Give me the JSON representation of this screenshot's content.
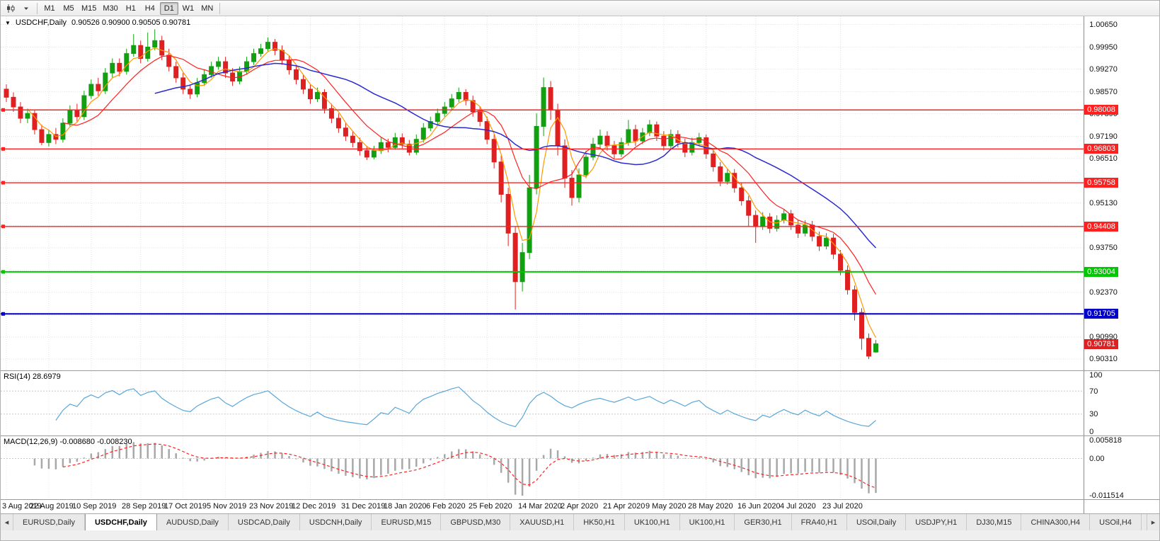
{
  "toolbar": {
    "timeframes": [
      "M1",
      "M5",
      "M15",
      "M30",
      "H1",
      "H4",
      "D1",
      "W1",
      "MN"
    ],
    "active_timeframe": "D1"
  },
  "chart": {
    "title": "USDCHF,Daily",
    "ohlc": "0.90526 0.90900 0.90505 0.90781",
    "current_price": "0.90781",
    "current_price_color": "#e02020"
  },
  "price_scale": {
    "labels": [
      "1.00650",
      "0.99950",
      "0.99270",
      "0.98570",
      "0.97890",
      "0.97190",
      "0.96510",
      "0.95810",
      "0.95130",
      "0.94430",
      "0.93750",
      "0.93050",
      "0.92370",
      "0.91670",
      "0.90990",
      "0.90310"
    ]
  },
  "rsi_panel": {
    "label": "RSI(14) 28.6979",
    "value": 28.6979,
    "axis_labels": [
      "100",
      "70",
      "30",
      "0"
    ]
  },
  "macd_panel": {
    "label": "MACD(12,26,9) -0.008680 -0.008230",
    "macd_value": -0.00868,
    "signal_value": -0.00823,
    "axis_labels": [
      "0.005818",
      "0.00",
      "-0.011514"
    ]
  },
  "tabs": {
    "items": [
      "EURUSD,Daily",
      "USDCHF,Daily",
      "AUDUSD,Daily",
      "USDCAD,Daily",
      "USDCNH,Daily",
      "EURUSD,M15",
      "GBPUSD,M30",
      "XAUUSD,H1",
      "HK50,H1",
      "UK100,H1",
      "UK100,H1",
      "GER30,H1",
      "FRA40,H1",
      "USOil,Daily",
      "USDJPY,H1",
      "DJ30,M15",
      "CHINA300,H4",
      "USOil,H4"
    ],
    "active_index": 1,
    "scroll_left_icon": "◂",
    "scroll_right_icon": "▸"
  },
  "chart_data": {
    "type": "candlestick",
    "title": "USDCHF,Daily",
    "symbol": "USDCHF",
    "timeframe": "Daily",
    "aggregation_days_per_bar": 2,
    "ohlc_current": {
      "open": 0.90526,
      "high": 0.909,
      "low": 0.90505,
      "close": 0.90781
    },
    "up_color": "#10a010",
    "down_color": "#e02020",
    "y_axis_ticks": [
      1.0065,
      0.9995,
      0.9927,
      0.9857,
      0.9789,
      0.9719,
      0.9651,
      0.9581,
      0.9513,
      0.9443,
      0.9375,
      0.9305,
      0.9237,
      0.9167,
      0.9099,
      0.9031
    ],
    "ylim": [
      0.9031,
      1.0065
    ],
    "x_axis_labels": [
      "3 Aug 2019",
      "22 Aug 2019",
      "10 Sep 2019",
      "28 Sep 2019",
      "17 Oct 2019",
      "5 Nov 2019",
      "23 Nov 2019",
      "12 Dec 2019",
      "31 Dec 2019",
      "18 Jan 2020",
      "6 Feb 2020",
      "25 Feb 2020",
      "14 Mar 2020",
      "2 Apr 2020",
      "21 Apr 2020",
      "9 May 2020",
      "28 May 2020",
      "16 Jun 2020",
      "4 Jul 2020",
      "23 Jul 2020"
    ],
    "x_label_bar_index": [
      0,
      6,
      12,
      19,
      25,
      31,
      37,
      43,
      50,
      56,
      62,
      68,
      75,
      81,
      87,
      93,
      99,
      106,
      112,
      118
    ],
    "moving_averages": [
      {
        "name": "ma-fast",
        "period": 8,
        "color": "#ff9900",
        "width": 1.2
      },
      {
        "name": "ma-mid",
        "period": 18,
        "color": "#ff2020",
        "width": 1.2
      },
      {
        "name": "ma-slow",
        "period": 44,
        "color": "#2a2ad0",
        "width": 1.5
      }
    ],
    "horizontal_levels": [
      {
        "value": 0.98008,
        "label": "0.98008",
        "color": "#ff2020",
        "width": 1.4
      },
      {
        "value": 0.96803,
        "label": "0.96803",
        "color": "#ff2020",
        "width": 1.4
      },
      {
        "value": 0.95758,
        "label": "0.95758",
        "color": "#ff2020",
        "width": 1.4
      },
      {
        "value": 0.94408,
        "label": "0.94408",
        "color": "#ff2020",
        "width": 1.4
      },
      {
        "value": 0.93004,
        "label": "0.93004",
        "color": "#00c800",
        "width": 2
      },
      {
        "value": 0.91705,
        "label": "0.91705",
        "color": "#0000c8",
        "width": 2
      }
    ],
    "indicators": [
      {
        "type": "rsi",
        "period": 14,
        "color": "#58a6d8",
        "guides": [
          70,
          30
        ],
        "range": [
          0,
          100
        ],
        "axis_ticks": [
          100,
          70,
          30,
          0
        ],
        "current": 28.6979
      },
      {
        "type": "macd",
        "fast": 12,
        "slow": 26,
        "signal": 9,
        "histogram_color": "#a8a8a8",
        "signal_color": "#ff2020",
        "range": [
          -0.011514,
          0.005818
        ],
        "axis_ticks": [
          0.005818,
          0,
          -0.011514
        ],
        "current_macd": -0.00868,
        "current_signal": -0.00823
      }
    ],
    "candles": [
      [
        0.9865,
        0.988,
        0.9825,
        0.984
      ],
      [
        0.984,
        0.9855,
        0.9795,
        0.981
      ],
      [
        0.981,
        0.9825,
        0.976,
        0.9775
      ],
      [
        0.9775,
        0.9805,
        0.976,
        0.979
      ],
      [
        0.979,
        0.98,
        0.9725,
        0.974
      ],
      [
        0.974,
        0.9755,
        0.9692,
        0.97
      ],
      [
        0.97,
        0.974,
        0.9688,
        0.9725
      ],
      [
        0.9725,
        0.9745,
        0.9695,
        0.971
      ],
      [
        0.971,
        0.9775,
        0.97,
        0.976
      ],
      [
        0.976,
        0.9815,
        0.975,
        0.98
      ],
      [
        0.98,
        0.982,
        0.9765,
        0.978
      ],
      [
        0.978,
        0.986,
        0.977,
        0.9845
      ],
      [
        0.9845,
        0.9895,
        0.9835,
        0.988
      ],
      [
        0.988,
        0.99,
        0.9845,
        0.986
      ],
      [
        0.986,
        0.993,
        0.985,
        0.9915
      ],
      [
        0.9915,
        0.996,
        0.99,
        0.9945
      ],
      [
        0.9945,
        0.996,
        0.9905,
        0.992
      ],
      [
        0.992,
        0.999,
        0.991,
        0.9975
      ],
      [
        0.9975,
        1.0035,
        0.9965,
        1.0
      ],
      [
        1.0,
        1.0015,
        0.9945,
        0.996
      ],
      [
        0.996,
        1.004,
        0.995,
        0.9995
      ],
      [
        0.9995,
        1.005,
        0.9985,
        1.0015
      ],
      [
        1.0015,
        1.003,
        0.9955,
        0.997
      ],
      [
        0.997,
        0.999,
        0.992,
        0.9935
      ],
      [
        0.9935,
        0.995,
        0.9885,
        0.99
      ],
      [
        0.99,
        0.9915,
        0.985,
        0.9865
      ],
      [
        0.9865,
        0.988,
        0.9835,
        0.985
      ],
      [
        0.985,
        0.99,
        0.984,
        0.9885
      ],
      [
        0.9885,
        0.9925,
        0.9875,
        0.991
      ],
      [
        0.991,
        0.995,
        0.99,
        0.9935
      ],
      [
        0.9935,
        0.9965,
        0.9925,
        0.995
      ],
      [
        0.995,
        0.9965,
        0.99,
        0.9915
      ],
      [
        0.9915,
        0.993,
        0.9875,
        0.989
      ],
      [
        0.989,
        0.9935,
        0.988,
        0.992
      ],
      [
        0.992,
        0.9965,
        0.991,
        0.995
      ],
      [
        0.995,
        0.999,
        0.994,
        0.9975
      ],
      [
        0.9975,
        1.0005,
        0.9965,
        0.999
      ],
      [
        0.999,
        1.0025,
        0.998,
        1.001
      ],
      [
        1.001,
        1.002,
        0.997,
        0.9985
      ],
      [
        0.9985,
        1.0,
        0.994,
        0.9955
      ],
      [
        0.9955,
        0.997,
        0.991,
        0.9925
      ],
      [
        0.9925,
        0.994,
        0.988,
        0.9895
      ],
      [
        0.9895,
        0.991,
        0.985,
        0.9865
      ],
      [
        0.9865,
        0.988,
        0.982,
        0.9835
      ],
      [
        0.9835,
        0.987,
        0.9825,
        0.9855
      ],
      [
        0.9855,
        0.9865,
        0.979,
        0.9805
      ],
      [
        0.9805,
        0.982,
        0.976,
        0.9775
      ],
      [
        0.9775,
        0.979,
        0.973,
        0.9745
      ],
      [
        0.9745,
        0.976,
        0.9705,
        0.972
      ],
      [
        0.972,
        0.9735,
        0.9685,
        0.97
      ],
      [
        0.97,
        0.9715,
        0.966,
        0.9675
      ],
      [
        0.9675,
        0.969,
        0.9646,
        0.9655
      ],
      [
        0.9655,
        0.969,
        0.9648,
        0.9675
      ],
      [
        0.9675,
        0.9715,
        0.9665,
        0.97
      ],
      [
        0.97,
        0.9712,
        0.967,
        0.9685
      ],
      [
        0.9685,
        0.973,
        0.9678,
        0.9715
      ],
      [
        0.9715,
        0.9728,
        0.9682,
        0.9695
      ],
      [
        0.9695,
        0.9708,
        0.966,
        0.967
      ],
      [
        0.967,
        0.9725,
        0.9662,
        0.971
      ],
      [
        0.971,
        0.976,
        0.97,
        0.9745
      ],
      [
        0.9745,
        0.978,
        0.9735,
        0.9765
      ],
      [
        0.9765,
        0.9805,
        0.9755,
        0.979
      ],
      [
        0.979,
        0.9825,
        0.978,
        0.981
      ],
      [
        0.981,
        0.985,
        0.98,
        0.9835
      ],
      [
        0.9835,
        0.987,
        0.9825,
        0.9855
      ],
      [
        0.9855,
        0.9865,
        0.9815,
        0.983
      ],
      [
        0.983,
        0.9845,
        0.978,
        0.9795
      ],
      [
        0.9795,
        0.981,
        0.975,
        0.9765
      ],
      [
        0.9765,
        0.978,
        0.9695,
        0.971
      ],
      [
        0.971,
        0.9725,
        0.962,
        0.964
      ],
      [
        0.964,
        0.966,
        0.9515,
        0.954
      ],
      [
        0.954,
        0.956,
        0.938,
        0.942
      ],
      [
        0.942,
        0.944,
        0.9184,
        0.927
      ],
      [
        0.927,
        0.939,
        0.924,
        0.936
      ],
      [
        0.936,
        0.96,
        0.934,
        0.956
      ],
      [
        0.956,
        0.979,
        0.954,
        0.975
      ],
      [
        0.975,
        0.9901,
        0.972,
        0.987
      ],
      [
        0.987,
        0.989,
        0.977,
        0.98
      ],
      [
        0.98,
        0.982,
        0.966,
        0.969
      ],
      [
        0.969,
        0.971,
        0.956,
        0.959
      ],
      [
        0.959,
        0.9615,
        0.9505,
        0.953
      ],
      [
        0.953,
        0.962,
        0.9515,
        0.96
      ],
      [
        0.96,
        0.9675,
        0.959,
        0.9655
      ],
      [
        0.9655,
        0.9715,
        0.9645,
        0.9695
      ],
      [
        0.9695,
        0.974,
        0.968,
        0.972
      ],
      [
        0.972,
        0.9735,
        0.9675,
        0.969
      ],
      [
        0.969,
        0.9705,
        0.965,
        0.9665
      ],
      [
        0.9665,
        0.9715,
        0.9655,
        0.97
      ],
      [
        0.97,
        0.977,
        0.969,
        0.974
      ],
      [
        0.974,
        0.9755,
        0.969,
        0.9705
      ],
      [
        0.9705,
        0.9745,
        0.9695,
        0.973
      ],
      [
        0.973,
        0.977,
        0.972,
        0.9755
      ],
      [
        0.9755,
        0.9765,
        0.9705,
        0.972
      ],
      [
        0.972,
        0.9735,
        0.9675,
        0.969
      ],
      [
        0.969,
        0.974,
        0.968,
        0.9725
      ],
      [
        0.9725,
        0.9738,
        0.9685,
        0.97
      ],
      [
        0.97,
        0.9712,
        0.9655,
        0.967
      ],
      [
        0.967,
        0.9715,
        0.966,
        0.97
      ],
      [
        0.97,
        0.973,
        0.969,
        0.9715
      ],
      [
        0.9715,
        0.9725,
        0.965,
        0.9665
      ],
      [
        0.9665,
        0.968,
        0.961,
        0.9625
      ],
      [
        0.9625,
        0.964,
        0.9565,
        0.958
      ],
      [
        0.958,
        0.962,
        0.957,
        0.9605
      ],
      [
        0.9605,
        0.9618,
        0.9545,
        0.956
      ],
      [
        0.956,
        0.9575,
        0.9505,
        0.952
      ],
      [
        0.952,
        0.9535,
        0.944,
        0.9475
      ],
      [
        0.9475,
        0.949,
        0.939,
        0.944
      ],
      [
        0.944,
        0.9485,
        0.943,
        0.947
      ],
      [
        0.947,
        0.9482,
        0.942,
        0.9435
      ],
      [
        0.9435,
        0.9475,
        0.9425,
        0.946
      ],
      [
        0.946,
        0.9495,
        0.945,
        0.948
      ],
      [
        0.948,
        0.9492,
        0.943,
        0.9445
      ],
      [
        0.9445,
        0.946,
        0.9405,
        0.942
      ],
      [
        0.942,
        0.946,
        0.941,
        0.9445
      ],
      [
        0.9445,
        0.9458,
        0.9395,
        0.941
      ],
      [
        0.941,
        0.9425,
        0.9365,
        0.938
      ],
      [
        0.938,
        0.942,
        0.937,
        0.9405
      ],
      [
        0.9405,
        0.9418,
        0.934,
        0.9355
      ],
      [
        0.9355,
        0.9368,
        0.929,
        0.9305
      ],
      [
        0.9305,
        0.932,
        0.923,
        0.9245
      ],
      [
        0.9245,
        0.9258,
        0.915,
        0.9175
      ],
      [
        0.9175,
        0.9188,
        0.906,
        0.9095
      ],
      [
        0.9095,
        0.911,
        0.9031,
        0.904
      ],
      [
        0.90526,
        0.909,
        0.90505,
        0.90781
      ]
    ]
  }
}
